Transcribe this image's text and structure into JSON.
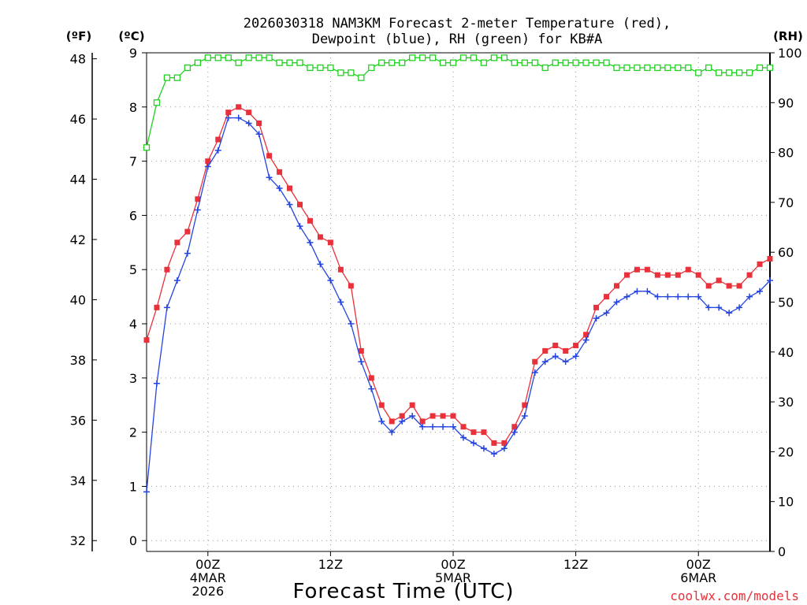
{
  "chart_data": {
    "type": "line",
    "title_line1": "2026030318 NAM3KM Forecast 2-meter Temperature (red),",
    "title_line2": "Dewpoint (blue), RH (green) for KB#A",
    "xlabel": "Forecast Time (UTC)",
    "credit": "coolwx.com/models",
    "units": {
      "fahrenheit": "(ºF)",
      "celsius": "(ºC)",
      "rh": "(RH)"
    },
    "x_range_hours": [
      0,
      61
    ],
    "x_ticks": [
      {
        "hour": 6,
        "lines": [
          "00Z",
          "4MAR",
          "2026"
        ]
      },
      {
        "hour": 18,
        "lines": [
          "12Z"
        ]
      },
      {
        "hour": 30,
        "lines": [
          "00Z",
          "5MAR"
        ]
      },
      {
        "hour": 42,
        "lines": [
          "12Z"
        ]
      },
      {
        "hour": 54,
        "lines": [
          "00Z",
          "6MAR"
        ]
      }
    ],
    "y_celsius": {
      "range": [
        -0.2,
        9.0
      ],
      "ticks": [
        0,
        1,
        2,
        3,
        4,
        5,
        6,
        7,
        8,
        9
      ]
    },
    "y_fahrenheit": {
      "ticks": [
        32,
        34,
        36,
        38,
        40,
        42,
        44,
        46,
        48
      ]
    },
    "y_rh": {
      "range": [
        0,
        100
      ],
      "ticks": [
        0,
        10,
        20,
        30,
        40,
        50,
        60,
        70,
        80,
        90,
        100
      ]
    },
    "x_hours": [
      0,
      1,
      2,
      3,
      4,
      5,
      6,
      7,
      8,
      9,
      10,
      11,
      12,
      13,
      14,
      15,
      16,
      17,
      18,
      19,
      20,
      21,
      22,
      23,
      24,
      25,
      26,
      27,
      28,
      29,
      30,
      31,
      32,
      33,
      34,
      35,
      36,
      37,
      38,
      39,
      40,
      41,
      42,
      43,
      44,
      45,
      46,
      47,
      48,
      49,
      50,
      51,
      52,
      53,
      54,
      55,
      56,
      57,
      58,
      59,
      60,
      61
    ],
    "series": [
      {
        "name": "Temperature",
        "unit": "C",
        "color": "#e8313a",
        "marker": "filled-square",
        "values": [
          3.7,
          4.3,
          5.0,
          5.5,
          5.7,
          6.3,
          7.0,
          7.4,
          7.9,
          8.0,
          7.9,
          7.7,
          7.1,
          6.8,
          6.5,
          6.2,
          5.9,
          5.6,
          5.5,
          5.0,
          4.7,
          3.5,
          3.0,
          2.5,
          2.2,
          2.3,
          2.5,
          2.2,
          2.3,
          2.3,
          2.3,
          2.1,
          2.0,
          2.0,
          1.8,
          1.8,
          2.1,
          2.5,
          3.3,
          3.5,
          3.6,
          3.5,
          3.6,
          3.8,
          4.3,
          4.5,
          4.7,
          4.9,
          5.0,
          5.0,
          4.9,
          4.9,
          4.9,
          5.0,
          4.9,
          4.7,
          4.8,
          4.7,
          4.7,
          4.9,
          5.1,
          5.2
        ]
      },
      {
        "name": "Dewpoint",
        "unit": "C",
        "color": "#2444e0",
        "marker": "plus",
        "values": [
          0.9,
          2.9,
          4.3,
          4.8,
          5.3,
          6.1,
          6.9,
          7.2,
          7.8,
          7.8,
          7.7,
          7.5,
          6.7,
          6.5,
          6.2,
          5.8,
          5.5,
          5.1,
          4.8,
          4.4,
          4.0,
          3.3,
          2.8,
          2.2,
          2.0,
          2.2,
          2.3,
          2.1,
          2.1,
          2.1,
          2.1,
          1.9,
          1.8,
          1.7,
          1.6,
          1.7,
          2.0,
          2.3,
          3.1,
          3.3,
          3.4,
          3.3,
          3.4,
          3.7,
          4.1,
          4.2,
          4.4,
          4.5,
          4.6,
          4.6,
          4.5,
          4.5,
          4.5,
          4.5,
          4.5,
          4.3,
          4.3,
          4.2,
          4.3,
          4.5,
          4.6,
          4.8
        ]
      },
      {
        "name": "RH",
        "unit": "%",
        "color": "#22d022",
        "marker": "open-square",
        "values": [
          81,
          90,
          95,
          95,
          97,
          98,
          99,
          99,
          99,
          98,
          99,
          99,
          99,
          98,
          98,
          98,
          97,
          97,
          97,
          96,
          96,
          95,
          97,
          98,
          98,
          98,
          99,
          99,
          99,
          98,
          98,
          99,
          99,
          98,
          99,
          99,
          98,
          98,
          98,
          97,
          98,
          98,
          98,
          98,
          98,
          98,
          97,
          97,
          97,
          97,
          97,
          97,
          97,
          97,
          96,
          97,
          96,
          96,
          96,
          96,
          97,
          97
        ]
      }
    ]
  }
}
